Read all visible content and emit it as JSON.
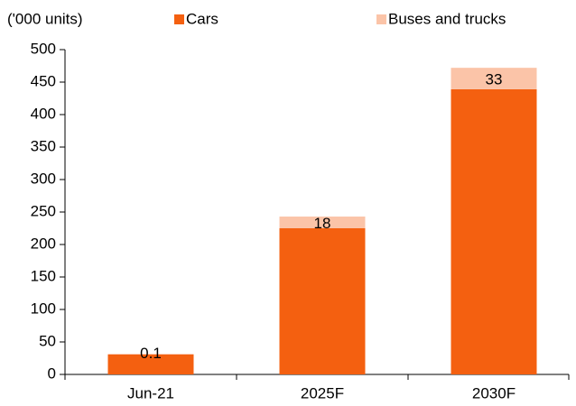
{
  "chart_data": {
    "type": "stacked_bar",
    "y_axis_label": "('000 units)",
    "categories": [
      "Jun-21",
      "2025F",
      "2030F"
    ],
    "series": [
      {
        "name": "Cars",
        "color": "#f46010",
        "values": [
          31,
          225,
          439
        ]
      },
      {
        "name": "Buses and trucks",
        "color": "#fbc4a8",
        "values": [
          0.1,
          18,
          33
        ]
      }
    ],
    "data_labels_series": 1,
    "ylim": [
      0,
      500
    ],
    "yticks": [
      0,
      50,
      100,
      150,
      200,
      250,
      300,
      350,
      400,
      450,
      500
    ],
    "grid": false,
    "legend": "top"
  }
}
